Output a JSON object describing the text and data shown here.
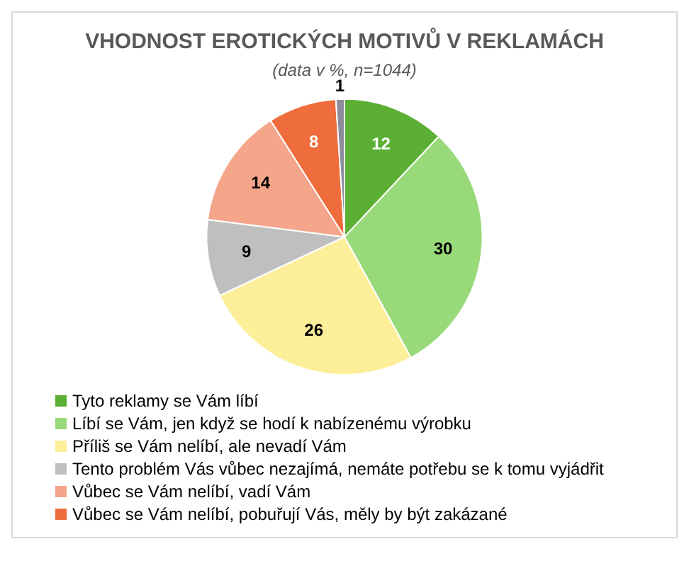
{
  "chart_data": {
    "type": "pie",
    "title": "VHODNOST EROTICKÝCH MOTIVŮ V REKLAMÁCH",
    "subtitle": "(data v %, n=1044)",
    "categories": [
      "Tyto reklamy se Vám líbí",
      "Líbí se Vám, jen když se hodí k nabízenému výrobku",
      "Příliš se Vám nelíbí, ale nevadí Vám",
      "Tento problém Vás vůbec nezajímá, nemáte potřebu se k tomu vyjádřit",
      "Vůbec se Vám nelíbí, vadí Vám",
      "Vůbec se Vám nelíbí, pobuřují Vás, měly by být zakázané",
      null
    ],
    "values": [
      12,
      30,
      26,
      9,
      14,
      8,
      1
    ],
    "colors": [
      "#5bb034",
      "#98d979",
      "#fdef9a",
      "#bfbfbf",
      "#f4a58a",
      "#ef6c3c",
      "#8c8c9c"
    ],
    "data_labels": true,
    "legend": "bottom left"
  }
}
